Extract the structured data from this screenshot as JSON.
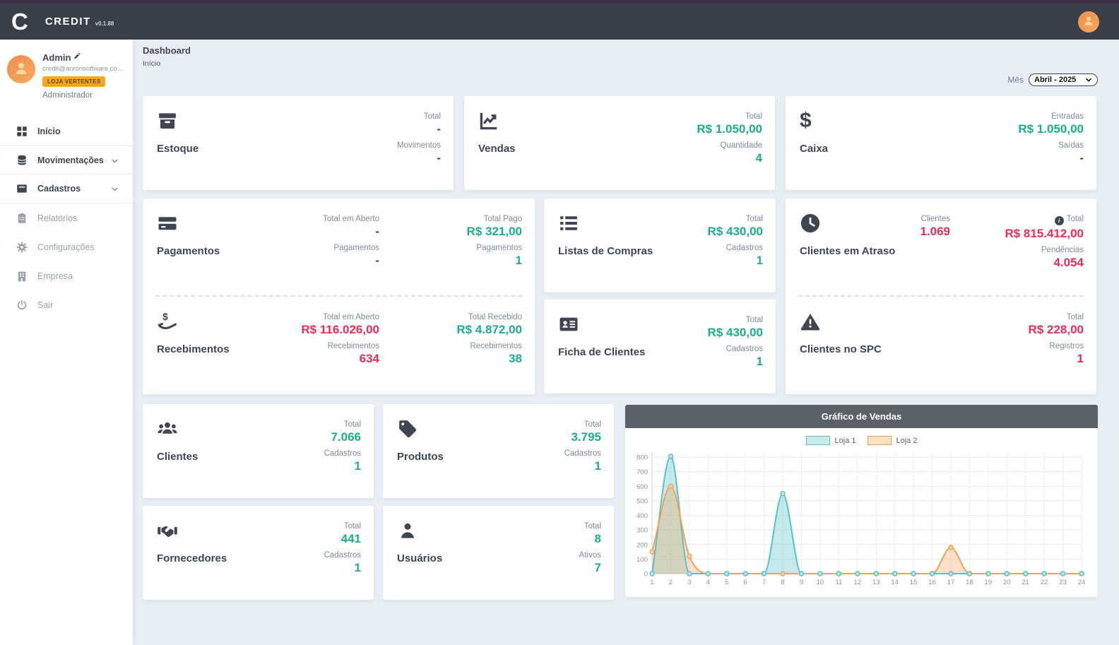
{
  "colors": {
    "green": "#1aaf8a",
    "red": "#ee2c54",
    "dark": "#3f4652",
    "accent_orange": "#f8a524"
  },
  "header": {
    "logo_letter": "C",
    "brand": "CREDIT",
    "version": "v0.1.88"
  },
  "profile": {
    "name": "Admin",
    "email": "credit@anronsoftware.co...",
    "badge": "LOJA VERTENTES",
    "role": "Administrador"
  },
  "sidebar": {
    "items": [
      {
        "label": "Início"
      },
      {
        "label": "Movimentações"
      },
      {
        "label": "Cadastros"
      },
      {
        "label": "Relatórios"
      },
      {
        "label": "Configurações"
      },
      {
        "label": "Empresa"
      },
      {
        "label": "Sair"
      }
    ]
  },
  "breadcrumb": {
    "title": "Dashboard",
    "subtitle": "Início"
  },
  "month_filter": {
    "label": "Mês",
    "value": "Abril - 2025"
  },
  "cards": {
    "estoque": {
      "title": "Estoque",
      "stats": [
        {
          "label": "Total",
          "value": "-"
        },
        {
          "label": "Movimentos",
          "value": "-"
        }
      ]
    },
    "vendas": {
      "title": "Vendas",
      "stats": [
        {
          "label": "Total",
          "value": "R$ 1.050,00"
        },
        {
          "label": "Quantidade",
          "value": "4"
        }
      ]
    },
    "caixa": {
      "title": "Caixa",
      "stats": [
        {
          "label": "Entradas",
          "value": "R$ 1.050,00"
        },
        {
          "label": "Saídas",
          "value": "-"
        }
      ]
    },
    "pagamentos": {
      "title": "Pagamentos",
      "open": {
        "labels": [
          "Total em Aberto",
          "Pagamentos"
        ],
        "values": [
          "-",
          "-"
        ]
      },
      "paid": {
        "labels": [
          "Total Pago",
          "Pagamentos"
        ],
        "values": [
          "R$ 321,00",
          "1"
        ]
      }
    },
    "recebimentos": {
      "title": "Recebimentos",
      "open": {
        "labels": [
          "Total em Aberto",
          "Recebimentos"
        ],
        "values": [
          "R$ 116.026,00",
          "634"
        ]
      },
      "received": {
        "labels": [
          "Total Recebido",
          "Recebimentos"
        ],
        "values": [
          "R$ 4.872,00",
          "38"
        ]
      }
    },
    "listas": {
      "title": "Listas de Compras",
      "stats": [
        {
          "label": "Total",
          "value": "R$ 430,00"
        },
        {
          "label": "Cadastros",
          "value": "1"
        }
      ]
    },
    "ficha": {
      "title": "Ficha de Clientes",
      "stats": [
        {
          "label": "Total",
          "value": "R$ 430,00"
        },
        {
          "label": "Cadastros",
          "value": "1"
        }
      ]
    },
    "atraso": {
      "title": "Clientes em Atraso",
      "clientes_label": "Clientes",
      "clientes_value": "1.069",
      "total_label": "Total",
      "total_value": "R$ 815.412,00",
      "pendencias_label": "Pendências",
      "pendencias_value": "4.054"
    },
    "spc": {
      "title": "Clientes no SPC",
      "total_label": "Total",
      "total_value": "R$ 228,00",
      "registros_label": "Registros",
      "registros_value": "1"
    },
    "clientes": {
      "title": "Clientes",
      "stats": [
        {
          "label": "Total",
          "value": "7.066"
        },
        {
          "label": "Cadastros",
          "value": "1"
        }
      ]
    },
    "produtos": {
      "title": "Produtos",
      "stats": [
        {
          "label": "Total",
          "value": "3.795"
        },
        {
          "label": "Cadastros",
          "value": "1"
        }
      ]
    },
    "fornecedores": {
      "title": "Fornecedores",
      "stats": [
        {
          "label": "Total",
          "value": "441"
        },
        {
          "label": "Cadastros",
          "value": "1"
        }
      ]
    },
    "usuarios": {
      "title": "Usuários",
      "stats": [
        {
          "label": "Total",
          "value": "8"
        },
        {
          "label": "Ativos",
          "value": "7"
        }
      ]
    }
  },
  "chart_data": {
    "type": "line",
    "title": "Gráfico de Vendas",
    "x": [
      1,
      2,
      3,
      4,
      5,
      6,
      7,
      8,
      9,
      10,
      11,
      12,
      13,
      14,
      15,
      16,
      17,
      18,
      19,
      20,
      21,
      22,
      23,
      24
    ],
    "series": [
      {
        "name": "Loja 1",
        "color": "#56c2c9",
        "fill": "rgba(86,194,201,0.35)",
        "swatch": "#cde9ea",
        "marker": "#bfe4e6",
        "values": [
          0,
          805,
          0,
          0,
          0,
          0,
          0,
          550,
          0,
          0,
          0,
          0,
          0,
          0,
          0,
          0,
          0,
          0,
          0,
          0,
          0,
          0,
          0,
          0
        ]
      },
      {
        "name": "Loja 2",
        "color": "#f2a158",
        "fill": "rgba(242,161,88,0.32)",
        "swatch": "#fbe2c3",
        "marker": "#f9d4a8",
        "values": [
          150,
          600,
          120,
          0,
          0,
          0,
          0,
          0,
          0,
          0,
          0,
          0,
          0,
          0,
          0,
          0,
          180,
          0,
          0,
          0,
          0,
          0,
          0,
          0
        ]
      }
    ],
    "ylim": [
      0,
      800
    ],
    "ytick_step": 100,
    "grid": true,
    "legend_position": "top"
  }
}
